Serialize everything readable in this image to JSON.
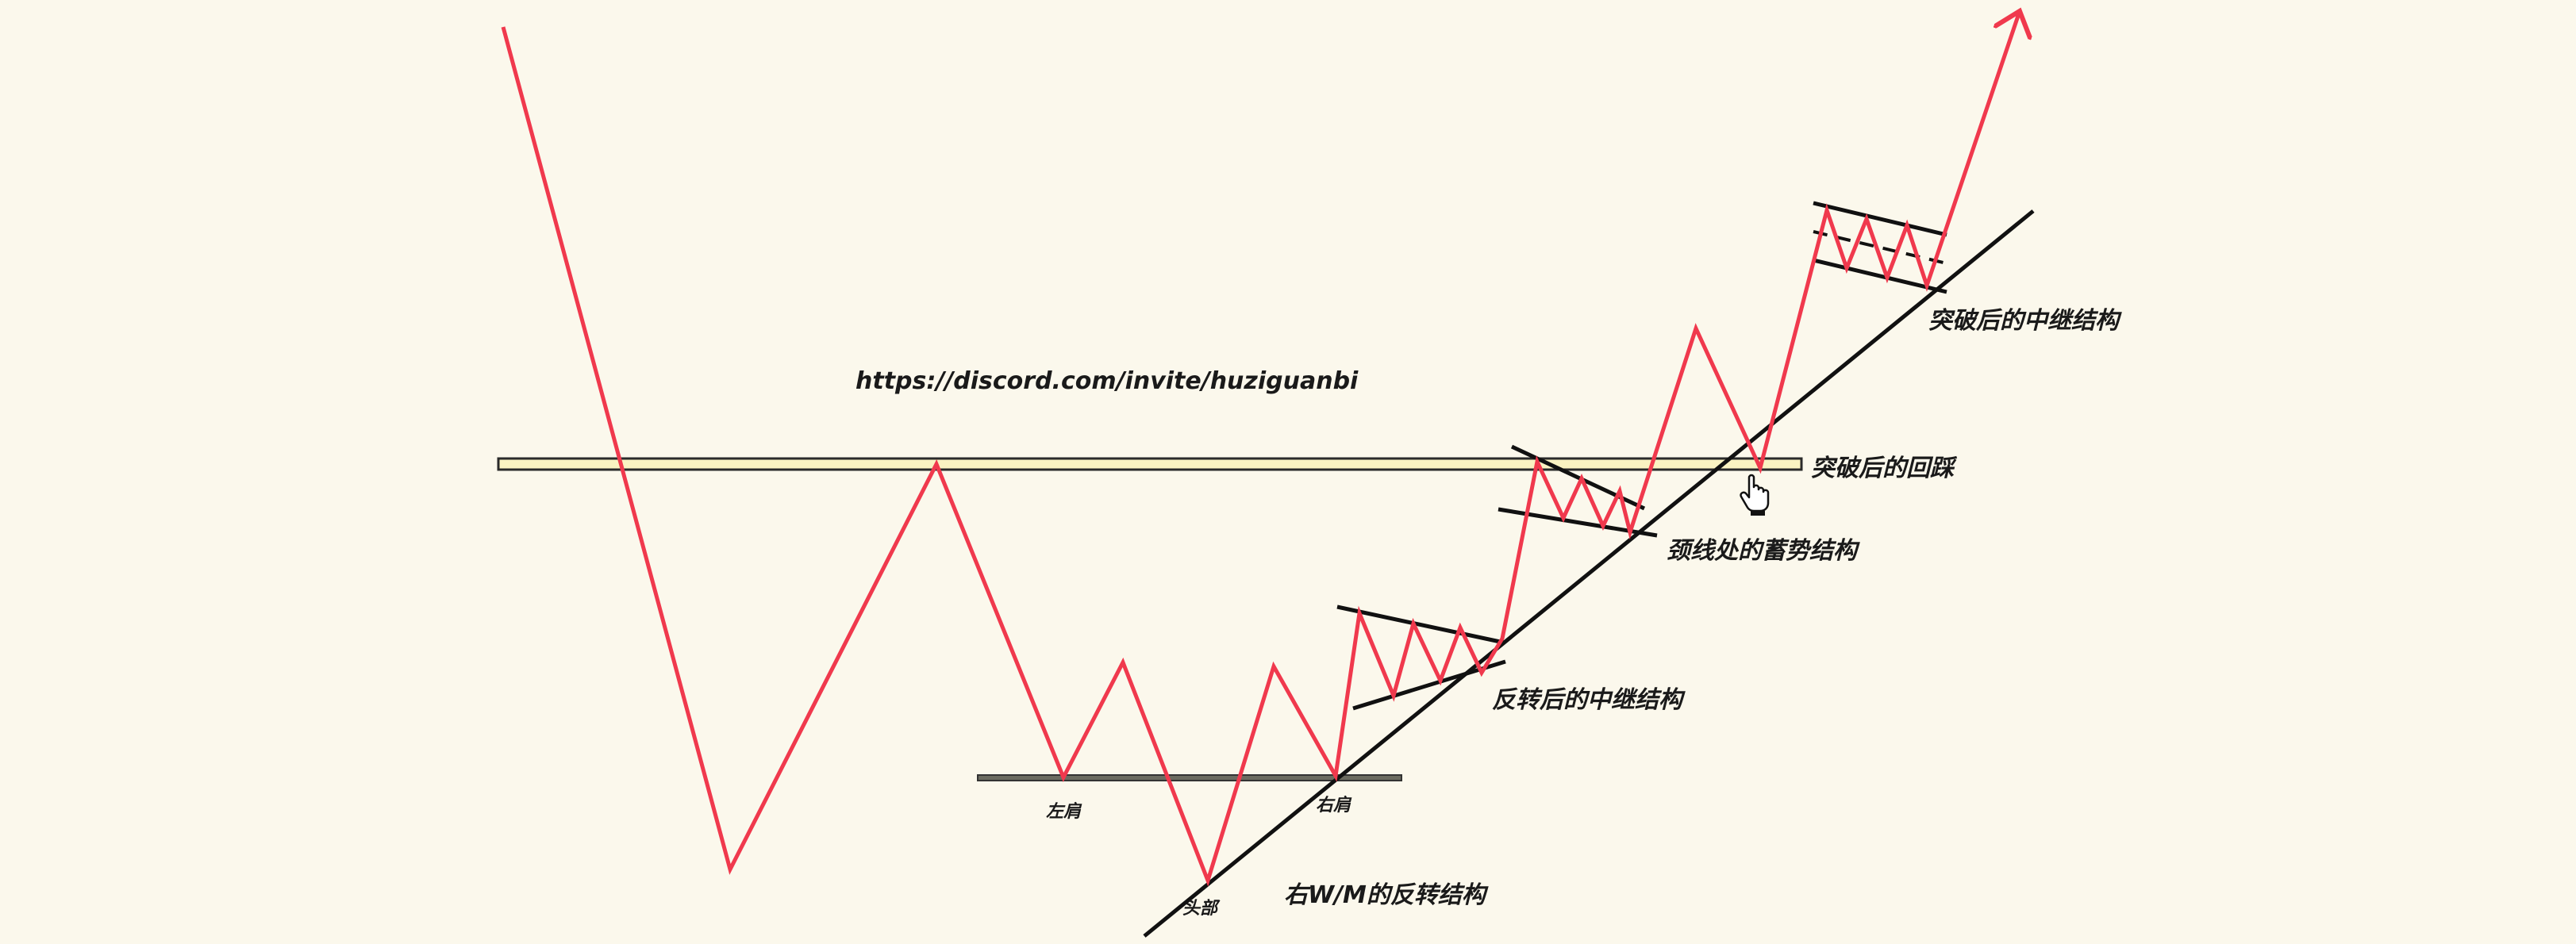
{
  "url_text": "https://discord.com/invite/huziguanbi",
  "labels": {
    "left_shoulder": "左肩",
    "head": "头部",
    "right_shoulder": "右肩",
    "reversal_structure": "右W/M的反转结构",
    "relay_after_reversal": "反转后的中继结构",
    "neckline_accumulation": "颈线处的蓄势结构",
    "pullback_after_breakout": "突破后的回踩",
    "relay_after_breakout": "突破后的中继结构"
  },
  "colors": {
    "background": "#fbf8ec",
    "price_line": "#f0394d",
    "neckline_fill": "#faf3c2",
    "neckline_stroke": "#2a2a2a",
    "base_line": "#6b6b60",
    "trendline": "#111111"
  },
  "icons": {
    "cursor": "hand-pointer-icon"
  }
}
